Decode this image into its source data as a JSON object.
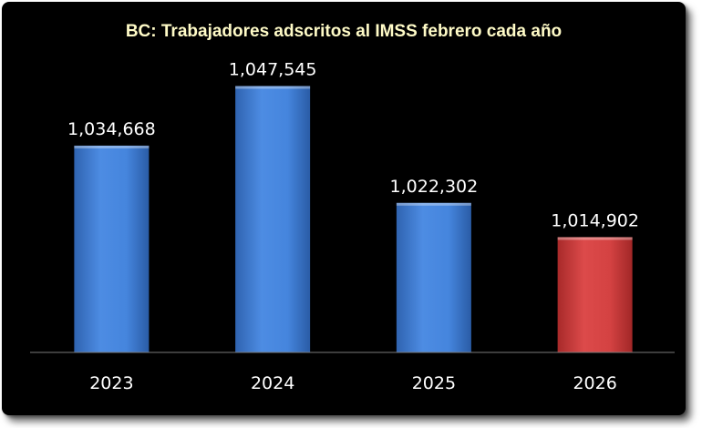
{
  "chart_data": {
    "type": "bar",
    "title": "BC: Trabajadores adscritos al IMSS febrero cada año",
    "categories": [
      "2023",
      "2024",
      "2025",
      "2026"
    ],
    "values": [
      1034668,
      1047545,
      1022302,
      1014902
    ],
    "value_labels": [
      "1,034,668",
      "1,047,545",
      "1,022,302",
      "1,014,902"
    ],
    "bar_colors": [
      "#3f7fd6",
      "#3f7fd6",
      "#3f7fd6",
      "#d13a3a"
    ],
    "ylim": [
      990000,
      1050000
    ],
    "xlabel": "",
    "ylabel": "",
    "grid": false,
    "legend": "none"
  },
  "colors": {
    "background": "#000000",
    "title": "#fffbc7",
    "text": "#ffffff",
    "bar_blue": "#3f7fd6",
    "bar_red": "#d13a3a"
  }
}
